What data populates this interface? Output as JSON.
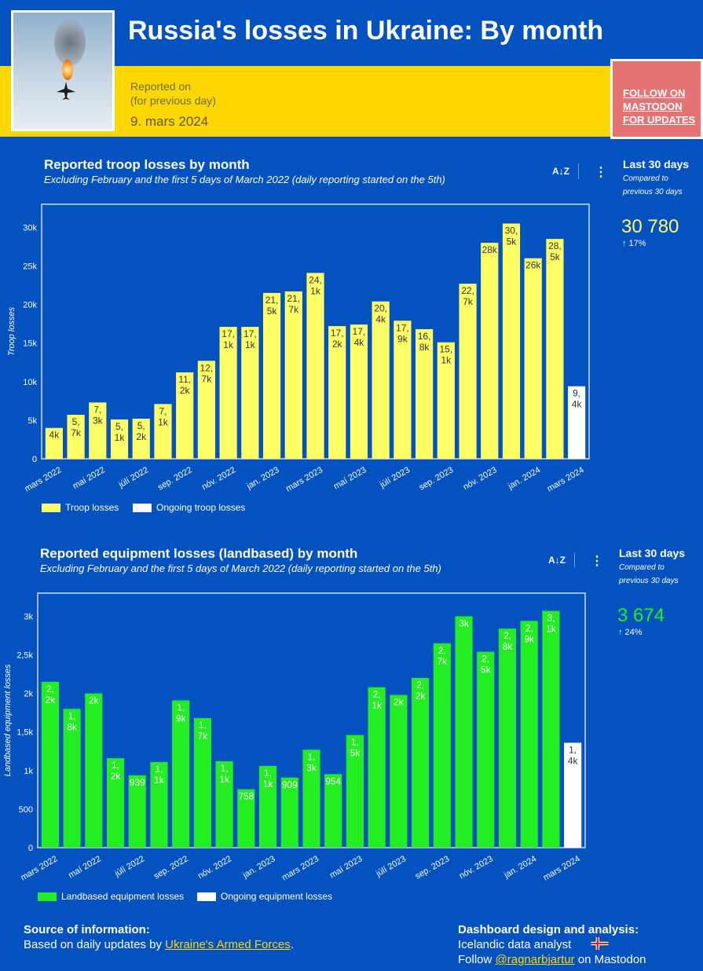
{
  "header": {
    "title": "Russia's losses in Ukraine:  By month",
    "reported_on_label_1": "Reported on",
    "reported_on_label_2": "(for previous day)",
    "reported_date": "9. mars 2024",
    "follow_line_1": "FOLLOW ON",
    "follow_line_2": "MASTODON",
    "follow_line_3": "FOR UPDATES"
  },
  "troop_section": {
    "title": "Reported troop losses by month",
    "subtitle": "Excluding February and the first 5 days of March 2022 (daily reporting started on the 5th)",
    "kpi_label": "Last 30 days",
    "kpi_sub_1": "Compared to",
    "kpi_sub_2": "previous 30 days",
    "kpi_value": "30 780",
    "kpi_change": "↑ 17%",
    "kpi_color": "#ffff66",
    "legend_main": "Troop losses",
    "legend_ongoing": "Ongoing troop losses",
    "sort_icon": "A↓Z",
    "menu_icon": "⋮"
  },
  "equip_section": {
    "title": "Reported equipment losses (landbased) by month",
    "subtitle": "Excluding February and the first 5 days of March 2022 (daily reporting started on the 5th)",
    "kpi_label": "Last 30 days",
    "kpi_sub_1": "Compared to",
    "kpi_sub_2": "previous 30 days",
    "kpi_value": "3 674",
    "kpi_change": "↑ 24%",
    "kpi_color": "#22ee22",
    "legend_main": "Landbased equipment losses",
    "legend_ongoing": "Ongoing equipment losses",
    "sort_icon": "A↓Z",
    "menu_icon": "⋮"
  },
  "footer": {
    "source_heading": "Source of information:",
    "source_text_prefix": "Based on daily updates by ",
    "source_link": "Ukraine's Armed Forces",
    "source_text_suffix": ".",
    "design_heading": "Dashboard design and analysis:",
    "design_line_1": "Icelandic data analyst",
    "design_line_2_prefix": "Follow ",
    "design_link": "@ragnarbjartur",
    "design_line_2_suffix": " on Mastodon"
  },
  "chart_data": [
    {
      "type": "bar",
      "title": "Reported troop losses by month",
      "ylabel": "Troop losses",
      "ylim": [
        0,
        33000
      ],
      "yticks": [
        0,
        5000,
        10000,
        15000,
        20000,
        25000,
        30000
      ],
      "ytick_labels": [
        "0",
        "5k",
        "10k",
        "15k",
        "20k",
        "25k",
        "30k"
      ],
      "xtick_labels": [
        "mars 2022",
        "mai 2022",
        "júlí 2022",
        "sep. 2022",
        "nóv. 2022",
        "jan. 2023",
        "mars 2023",
        "maí 2023",
        "júlí 2023",
        "sep. 2023",
        "nóv. 2023",
        "jan. 2024",
        "mars 2024"
      ],
      "bar_color": "#ffff66",
      "ongoing_color": "#ffffff",
      "label_color": "#333333",
      "series": [
        {
          "name": "Troop losses",
          "values": [
            4000,
            5700,
            7300,
            5100,
            5200,
            7100,
            11200,
            12700,
            17100,
            17100,
            21500,
            21700,
            24100,
            17200,
            17400,
            20400,
            17900,
            16800,
            15100,
            22700,
            28000,
            30500,
            26000,
            28500,
            null
          ],
          "labels": [
            "4k",
            "5,\n7k",
            "7,\n3k",
            "5,\n1k",
            "5,\n2k",
            "7,\n1k",
            "11,\n2k",
            "12,\n7k",
            "17,\n1k",
            "17,\n1k",
            "21,\n5k",
            "21,\n7k",
            "24,\n1k",
            "17,\n2k",
            "17,\n4k",
            "20,\n4k",
            "17,\n9k",
            "16,\n8k",
            "15,\n1k",
            "22,\n7k",
            "28k",
            "30,\n5k",
            "26k",
            "28,\n5k",
            ""
          ]
        },
        {
          "name": "Ongoing troop losses",
          "values": [
            null,
            null,
            null,
            null,
            null,
            null,
            null,
            null,
            null,
            null,
            null,
            null,
            null,
            null,
            null,
            null,
            null,
            null,
            null,
            null,
            null,
            null,
            null,
            null,
            9400
          ],
          "labels": [
            "",
            "",
            "",
            "",
            "",
            "",
            "",
            "",
            "",
            "",
            "",
            "",
            "",
            "",
            "",
            "",
            "",
            "",
            "",
            "",
            "",
            "",
            "",
            "",
            "9,\n4k"
          ]
        }
      ],
      "legend": "bottom-left"
    },
    {
      "type": "bar",
      "title": "Reported equipment losses (landbased) by month",
      "ylabel": "Landbased equipment losses",
      "ylim": [
        0,
        3300
      ],
      "yticks": [
        0,
        500,
        1000,
        1500,
        2000,
        2500,
        3000
      ],
      "ytick_labels": [
        "0",
        "500",
        "1k",
        "1,5k",
        "2k",
        "2,5k",
        "3k"
      ],
      "xtick_labels": [
        "mars 2022",
        "maí 2022",
        "júlí 2022",
        "sep. 2022",
        "nóv. 2022",
        "jan. 2023",
        "mars 2023",
        "maí 2023",
        "júlí 2023",
        "sep. 2023",
        "nóv. 2023",
        "jan. 2024",
        "mars 2024"
      ],
      "bar_color": "#22ee22",
      "ongoing_color": "#ffffff",
      "label_color": "#ffffff",
      "series": [
        {
          "name": "Landbased equipment losses",
          "values": [
            2150,
            1800,
            2000,
            1160,
            939,
            1110,
            1910,
            1680,
            1120,
            758,
            1060,
            909,
            1270,
            954,
            1460,
            2080,
            1980,
            2200,
            2650,
            3000,
            2540,
            2840,
            2940,
            3070,
            null
          ],
          "labels": [
            "2,\n2k",
            "1,\n8k",
            "2k",
            "1,\n2k",
            "939",
            "1,\n1k",
            "1,\n9k",
            "1,\n7k",
            "1,\n1k",
            "758",
            "1,\n1k",
            "909",
            "1,\n3k",
            "954",
            "1,\n5k",
            "2,\n1k",
            "2k",
            "2,\n2k",
            "2,\n7k",
            "3k",
            "2,\n5k",
            "2,\n8k",
            "2,\n9k",
            "3,\n1k",
            ""
          ]
        },
        {
          "name": "Ongoing equipment losses",
          "values": [
            null,
            null,
            null,
            null,
            null,
            null,
            null,
            null,
            null,
            null,
            null,
            null,
            null,
            null,
            null,
            null,
            null,
            null,
            null,
            null,
            null,
            null,
            null,
            null,
            1360
          ],
          "labels": [
            "",
            "",
            "",
            "",
            "",
            "",
            "",
            "",
            "",
            "",
            "",
            "",
            "",
            "",
            "",
            "",
            "",
            "",
            "",
            "",
            "",
            "",
            "",
            "",
            "1,\n4k"
          ]
        }
      ],
      "legend": "bottom-left"
    }
  ]
}
